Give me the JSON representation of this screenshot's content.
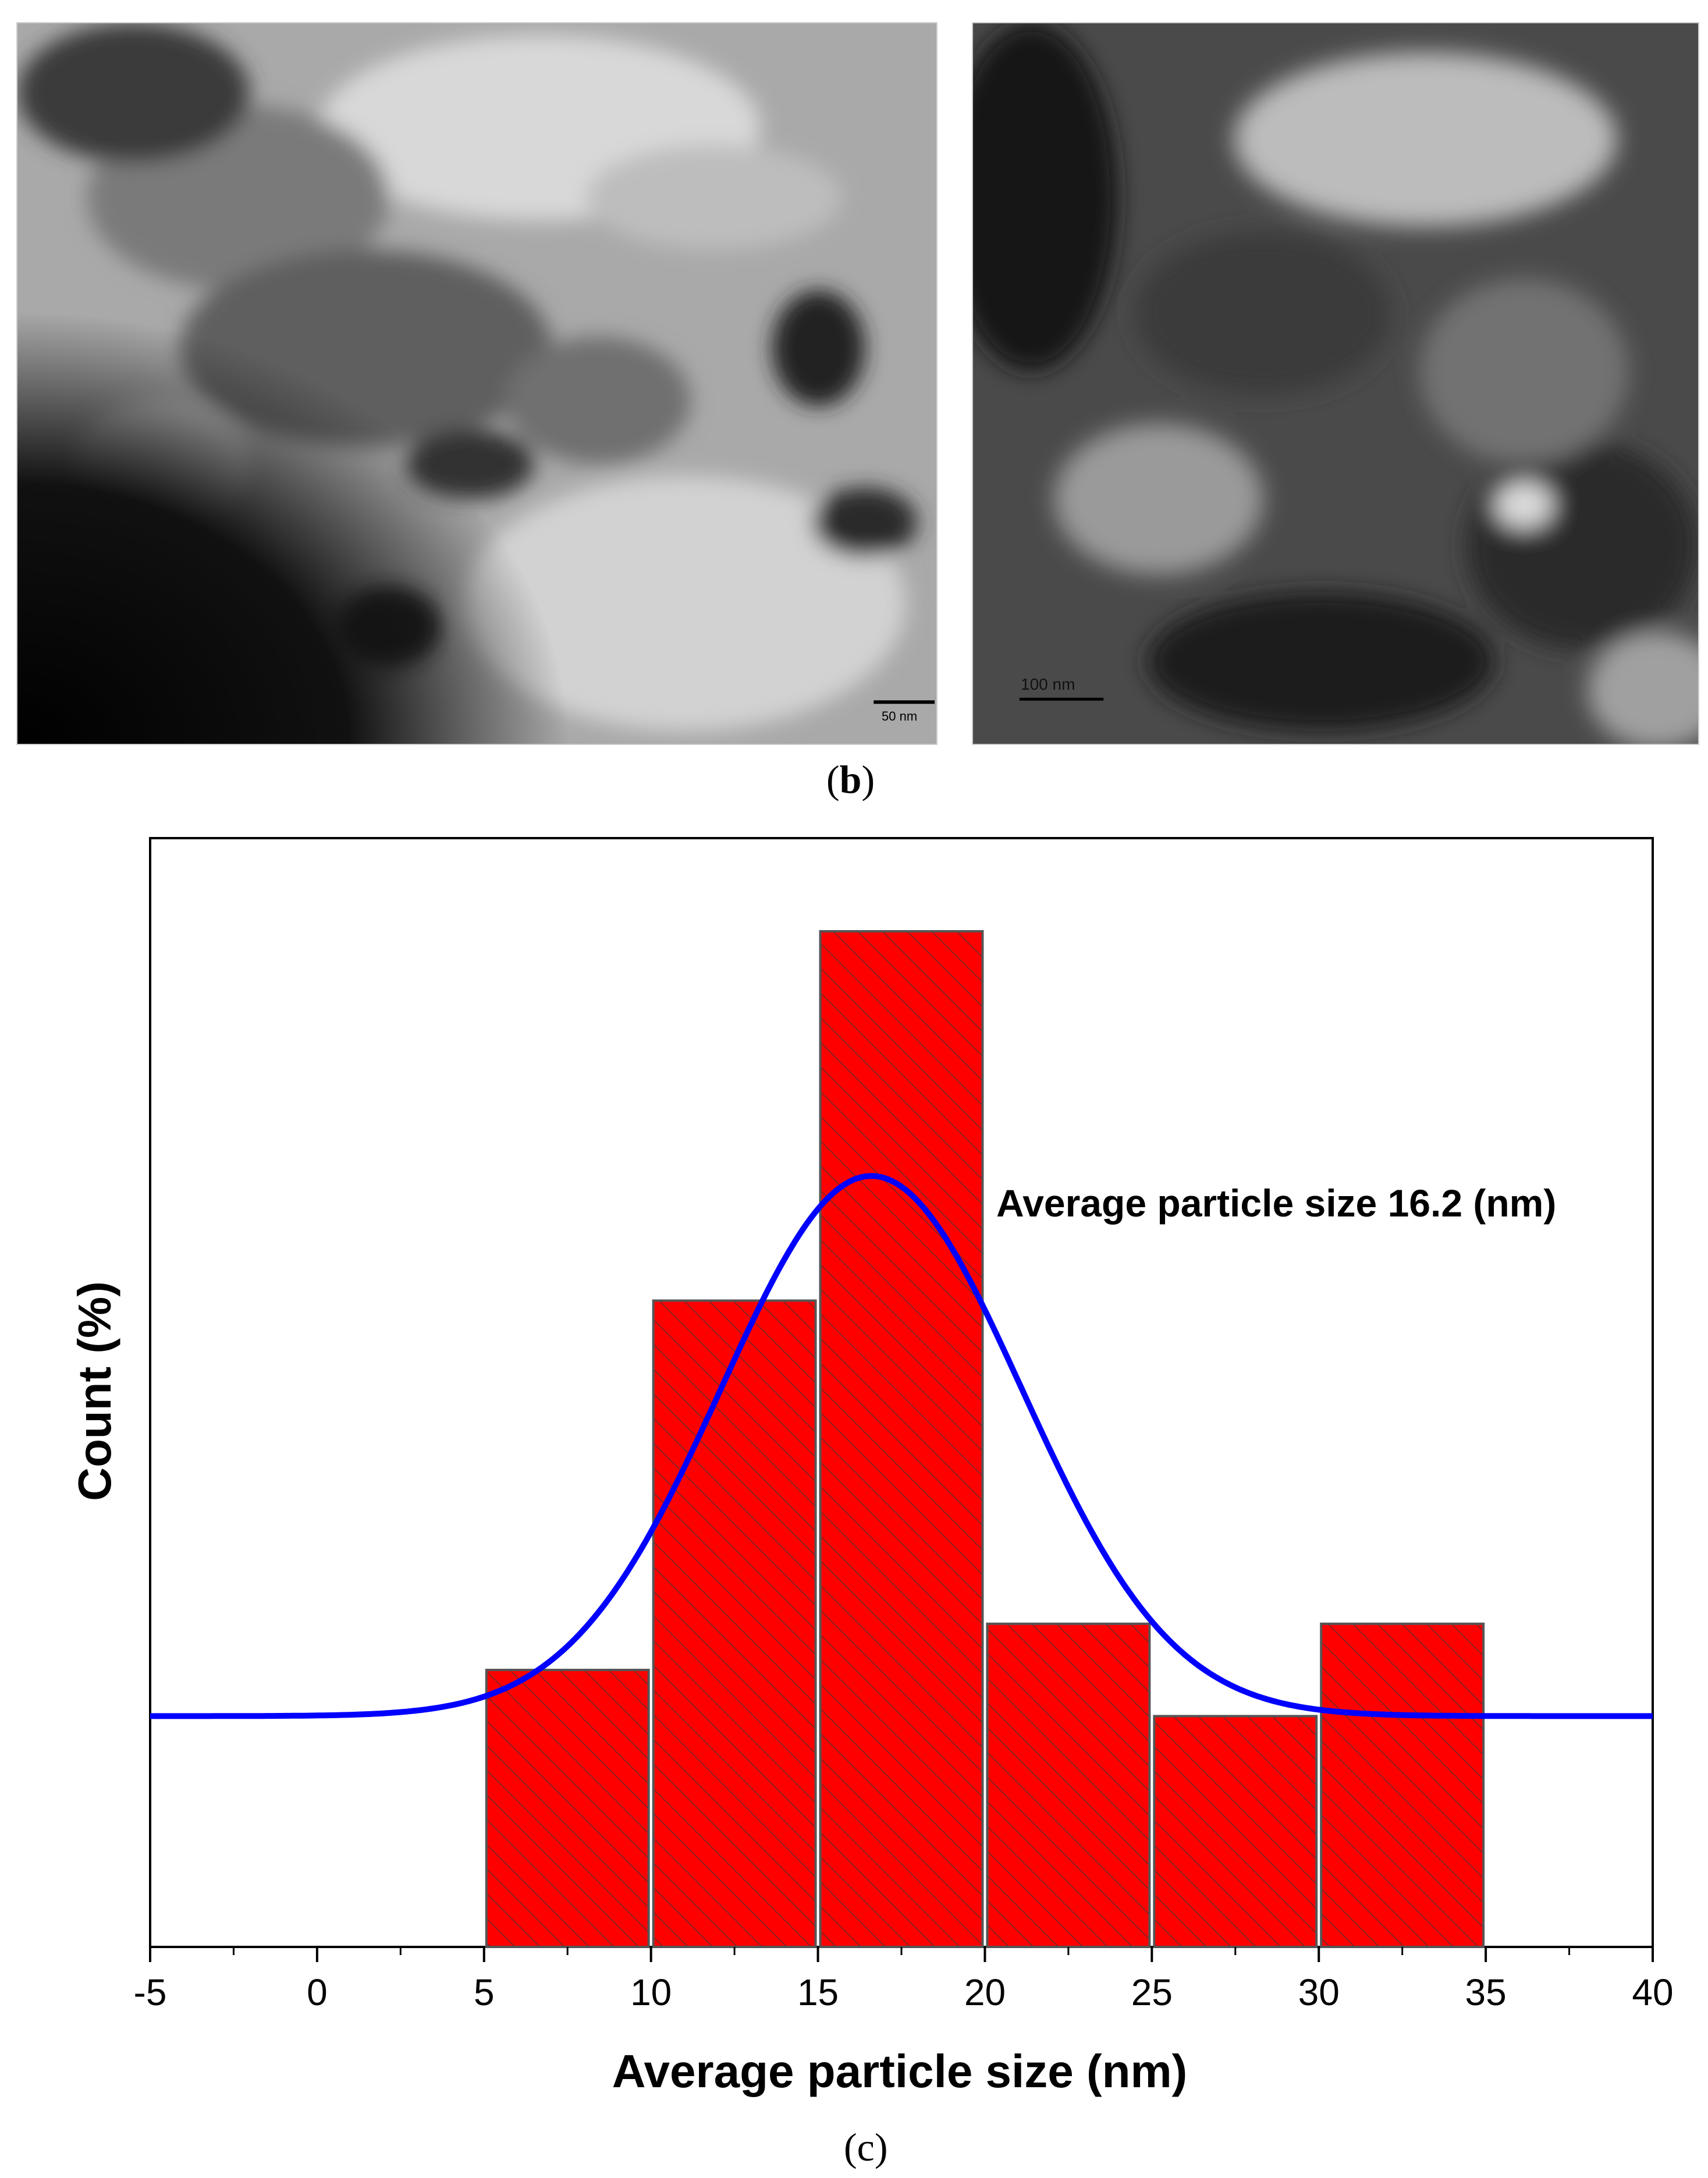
{
  "panel_b": {
    "left_scale_label": "50 nm",
    "right_scale_label": "100 nm",
    "caption_open": "(",
    "caption_letter": "b",
    "caption_close": ")"
  },
  "panel_c": {
    "caption": "(c)"
  },
  "chart_data": {
    "type": "bar",
    "xlabel": "Average particle size (nm)",
    "ylabel": "Count (%)",
    "xlim": [
      -5,
      40
    ],
    "ylim": [
      0,
      22
    ],
    "x_ticks": [
      -5,
      0,
      5,
      10,
      15,
      20,
      25,
      30,
      35,
      40
    ],
    "bins": [
      {
        "start": 5,
        "end": 10,
        "value": 6
      },
      {
        "start": 10,
        "end": 15,
        "value": 14
      },
      {
        "start": 15,
        "end": 20,
        "value": 22
      },
      {
        "start": 20,
        "end": 25,
        "value": 7
      },
      {
        "start": 25,
        "end": 30,
        "value": 5
      },
      {
        "start": 30,
        "end": 35,
        "value": 7
      }
    ],
    "fit_curve": {
      "type": "gaussian",
      "center": 16.6,
      "sigma": 4.5,
      "baseline": 5,
      "peak": 16.7
    },
    "annotation": "Average particle size 16.2 (nm)",
    "bar_color": "#ff0000",
    "curve_color": "#0000ff"
  }
}
